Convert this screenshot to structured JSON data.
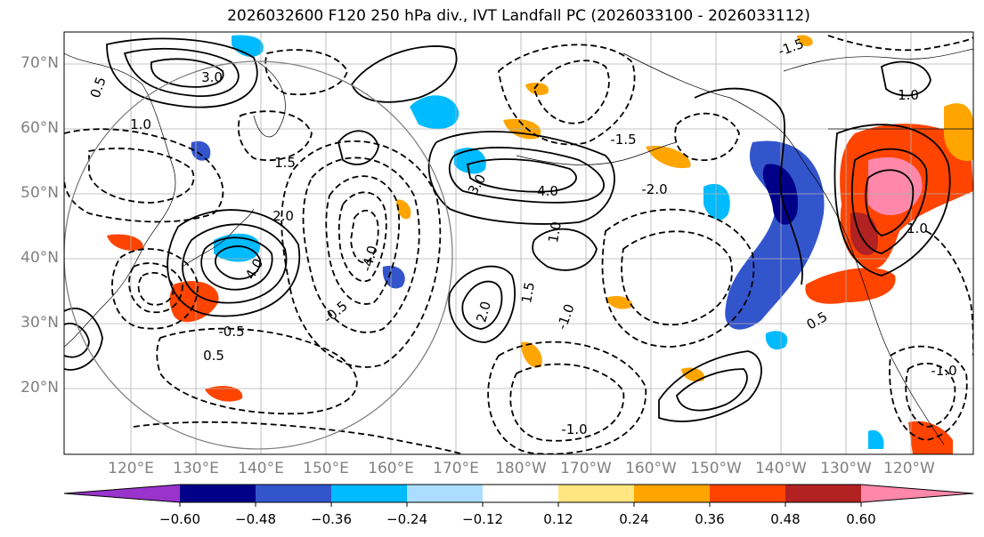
{
  "title": "2026032600 F120 250 hPa div., IVT Landfall PC (2026033100 - 2026033112)",
  "lat_labels": [
    "70°N",
    "60°N",
    "50°N",
    "40°N",
    "30°N",
    "20°N"
  ],
  "lon_labels": [
    "120°E",
    "130°E",
    "140°E",
    "150°E",
    "160°E",
    "170°E",
    "180°W",
    "170°W",
    "160°W",
    "150°W",
    "140°W",
    "130°W",
    "120°W"
  ],
  "contour_labels": [
    "0.5",
    "1.0",
    "1.5",
    "2.0",
    "3.0",
    "4.0",
    "-0.5",
    "-1.0",
    "-1.5",
    "-2.0",
    "3.0",
    "4.0",
    "-4.0",
    "2.0",
    "1.5",
    "-1.0",
    "-0.5",
    "1.0",
    "-1.5",
    "0.5",
    "1.0",
    "1.0",
    "-1.0",
    "0.5"
  ],
  "colorbar": {
    "ticks": [
      "−0.60",
      "−0.48",
      "−0.36",
      "−0.24",
      "−0.12",
      "0.12",
      "0.24",
      "0.36",
      "0.48",
      "0.60"
    ],
    "colors": [
      "#9933cc",
      "#000088",
      "#3355cc",
      "#00bbff",
      "#aaddff",
      "#ffffff",
      "#ffe680",
      "#ffa500",
      "#ff4400",
      "#b22222",
      "#ff88aa"
    ]
  }
}
